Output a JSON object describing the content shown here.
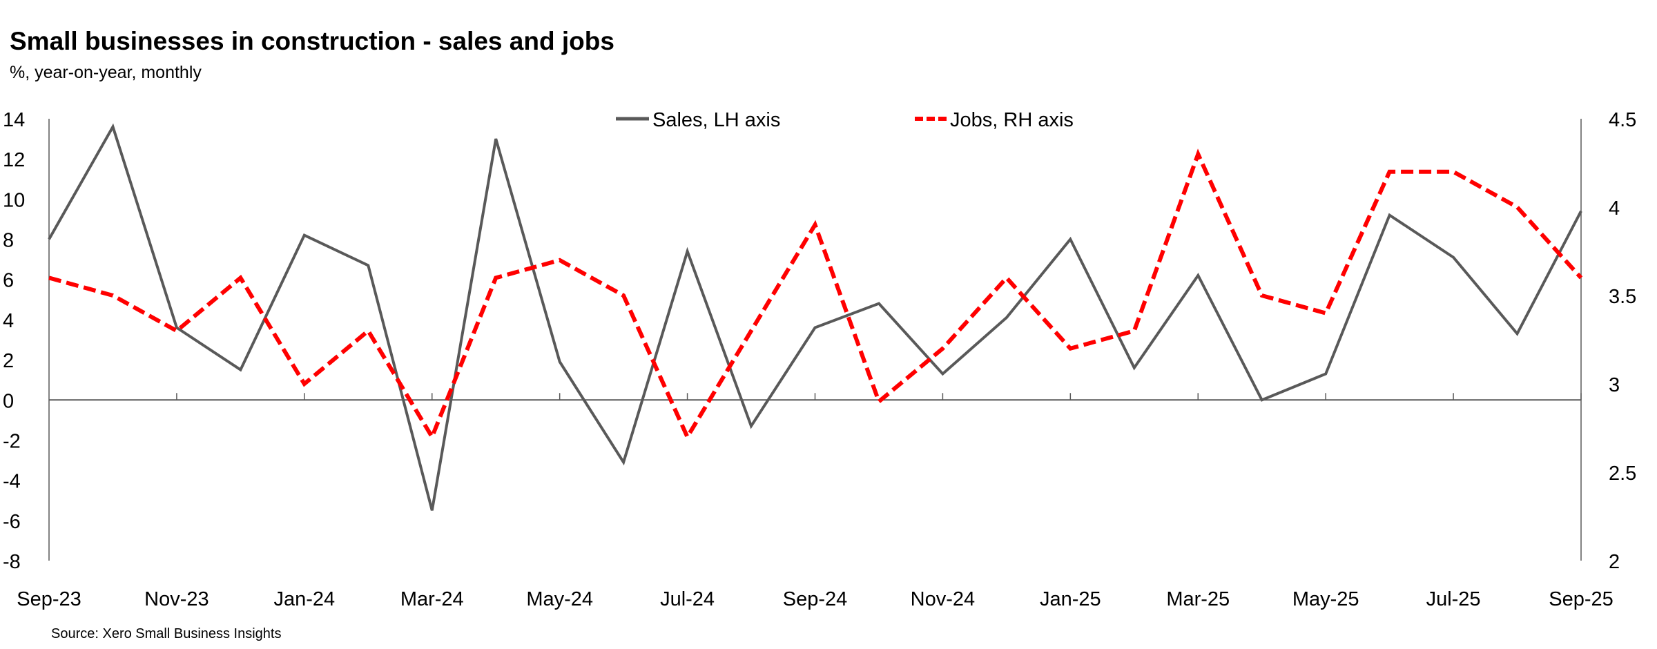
{
  "chart_data": {
    "type": "line",
    "title": "Small businesses in construction - sales and jobs",
    "subtitle": "%, year-on-year, monthly",
    "source": "Source: Xero Small Business Insights",
    "x": [
      "Sep-23",
      "Oct-23",
      "Nov-23",
      "Dec-23",
      "Jan-24",
      "Feb-24",
      "Mar-24",
      "Apr-24",
      "May-24",
      "Jun-24",
      "Jul-24",
      "Aug-24",
      "Sep-24",
      "Oct-24",
      "Nov-24",
      "Dec-24",
      "Jan-25",
      "Feb-25",
      "Mar-25",
      "Apr-25",
      "May-25",
      "Jun-25",
      "Jul-25",
      "Aug-25",
      "Sep-25"
    ],
    "x_tick_labels": [
      "Sep-23",
      "Nov-23",
      "Jan-24",
      "Mar-24",
      "May-24",
      "Jul-24",
      "Sep-24",
      "Nov-24",
      "Jan-25",
      "Mar-25",
      "May-25",
      "Jul-25",
      "Sep-25"
    ],
    "y_left": {
      "range": [
        -8,
        14
      ],
      "ticks": [
        "14",
        "12",
        "10",
        "8",
        "6",
        "4",
        "2",
        "0",
        "-2",
        "-4",
        "-6",
        "-8"
      ]
    },
    "y_right": {
      "range": [
        2,
        4.5
      ],
      "ticks": [
        "4.5",
        "4",
        "3.5",
        "3",
        "2.5",
        "2"
      ]
    },
    "grid": false,
    "legend_position": "top-center",
    "series": [
      {
        "name": "Sales, LH axis",
        "axis": "left",
        "color": "#595959",
        "style": "solid",
        "values": [
          8.0,
          13.6,
          3.6,
          1.5,
          8.2,
          6.7,
          -5.5,
          13.0,
          1.9,
          -3.1,
          7.4,
          -1.3,
          3.6,
          4.8,
          1.3,
          4.1,
          8.0,
          1.6,
          6.2,
          0.0,
          1.3,
          9.2,
          7.1,
          3.3,
          9.4
        ]
      },
      {
        "name": "Jobs, RH axis",
        "axis": "right",
        "color": "#FF0000",
        "style": "dashed",
        "values": [
          3.6,
          3.5,
          3.3,
          3.6,
          3.0,
          3.3,
          2.7,
          3.6,
          3.7,
          3.5,
          2.7,
          3.3,
          3.9,
          2.9,
          3.2,
          3.6,
          3.2,
          3.3,
          4.3,
          3.5,
          3.4,
          4.2,
          4.2,
          4.0,
          3.6
        ]
      }
    ]
  }
}
